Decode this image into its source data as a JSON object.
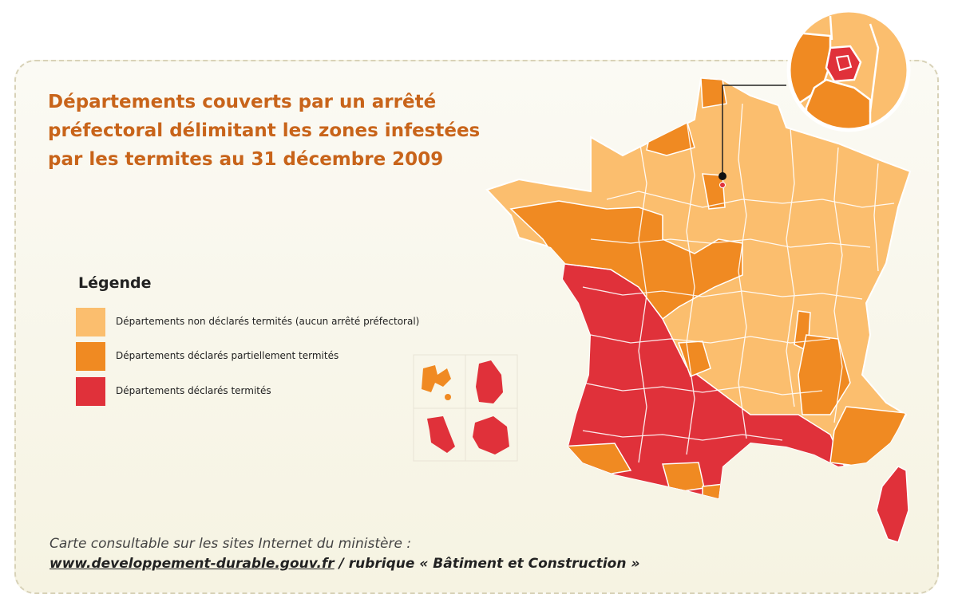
{
  "title": "Départements couverts par un arrêté préfectoral délimitant les zones infestées par les termites au 31 décembre 2009",
  "legend": {
    "title": "Légende",
    "items": [
      {
        "label": "Départements non déclarés termités (aucun arrêté préfectoral)",
        "color": "#fbbe6e"
      },
      {
        "label": "Départements déclarés partiellement termités",
        "color": "#f08a22"
      },
      {
        "label": "Départements déclarés termités",
        "color": "#e0313a"
      }
    ]
  },
  "colors": {
    "none": "#fbbe6e",
    "partial": "#f08a22",
    "full": "#e0313a",
    "title": "#c8641a"
  },
  "footer": {
    "note": "Carte consultable sur les sites Internet du ministère :",
    "link": "www.developpement-durable.gouv.fr",
    "rubric": " / rubrique « Bâtiment et Construction »"
  }
}
